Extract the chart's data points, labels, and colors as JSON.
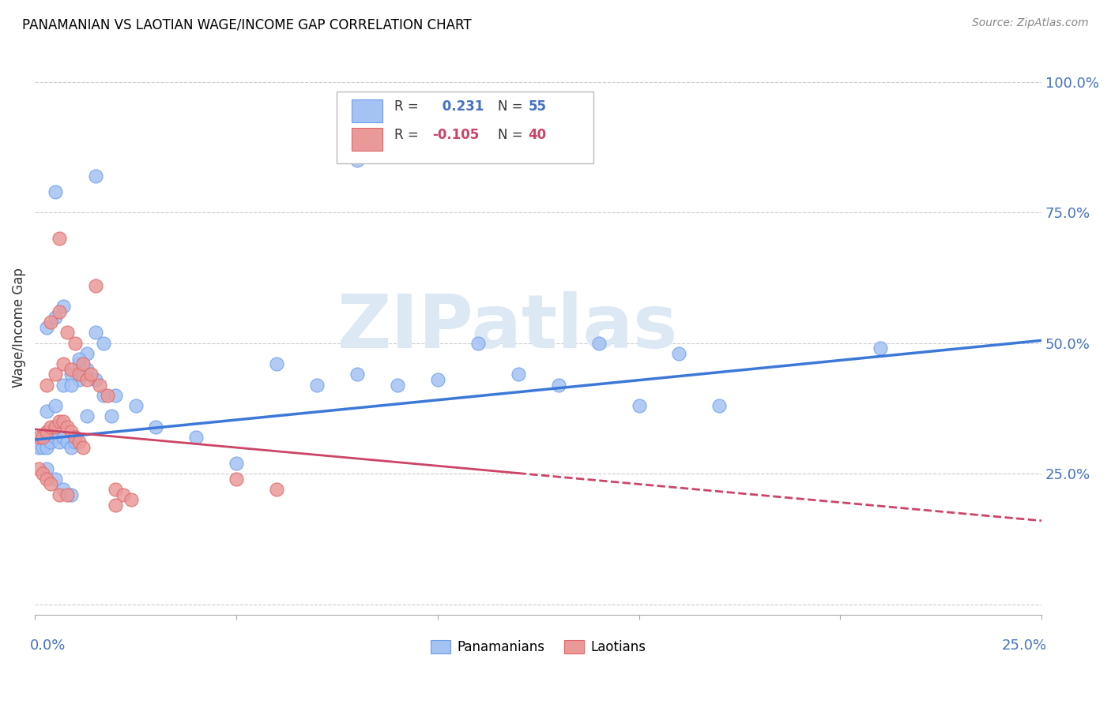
{
  "title": "PANAMANIAN VS LAOTIAN WAGE/INCOME GAP CORRELATION CHART",
  "source": "Source: ZipAtlas.com",
  "ylabel": "Wage/Income Gap",
  "xlim": [
    0.0,
    0.25
  ],
  "ylim": [
    -0.02,
    1.08
  ],
  "blue_R": 0.231,
  "blue_N": 55,
  "pink_R": -0.105,
  "pink_N": 40,
  "blue_color": "#a4c2f4",
  "pink_color": "#ea9999",
  "blue_edge": "#6d9eeb",
  "pink_edge": "#e06666",
  "trend_blue": "#3c78d8",
  "trend_pink": "#cc4466",
  "watermark": "ZIPatlas",
  "yticks": [
    0.0,
    0.25,
    0.5,
    0.75,
    1.0
  ],
  "ytick_labels": [
    "",
    "25.0%",
    "50.0%",
    "75.0%",
    "100.0%"
  ],
  "xtick_positions": [
    0.0,
    0.05,
    0.1,
    0.15,
    0.2,
    0.25
  ],
  "blue_trend_x": [
    0.0,
    0.25
  ],
  "blue_trend_y": [
    0.315,
    0.505
  ],
  "pink_trend_x": [
    0.0,
    0.25
  ],
  "pink_trend_y": [
    0.335,
    0.16
  ],
  "blue_points_x": [
    0.001,
    0.002,
    0.003,
    0.004,
    0.005,
    0.006,
    0.007,
    0.008,
    0.009,
    0.01,
    0.011,
    0.012,
    0.013,
    0.003,
    0.005,
    0.007,
    0.009,
    0.011,
    0.013,
    0.015,
    0.017,
    0.019,
    0.003,
    0.005,
    0.007,
    0.009,
    0.011,
    0.013,
    0.015,
    0.017,
    0.003,
    0.005,
    0.007,
    0.009,
    0.02,
    0.025,
    0.03,
    0.04,
    0.05,
    0.06,
    0.07,
    0.08,
    0.09,
    0.1,
    0.11,
    0.12,
    0.13,
    0.14,
    0.15,
    0.16,
    0.17,
    0.21,
    0.005,
    0.015,
    0.08
  ],
  "blue_points_y": [
    0.3,
    0.3,
    0.3,
    0.31,
    0.32,
    0.31,
    0.32,
    0.31,
    0.3,
    0.31,
    0.43,
    0.44,
    0.36,
    0.37,
    0.38,
    0.42,
    0.44,
    0.46,
    0.48,
    0.52,
    0.5,
    0.36,
    0.53,
    0.55,
    0.57,
    0.42,
    0.47,
    0.45,
    0.43,
    0.4,
    0.26,
    0.24,
    0.22,
    0.21,
    0.4,
    0.38,
    0.34,
    0.32,
    0.27,
    0.46,
    0.42,
    0.44,
    0.42,
    0.43,
    0.5,
    0.44,
    0.42,
    0.5,
    0.38,
    0.48,
    0.38,
    0.49,
    0.79,
    0.82,
    0.85
  ],
  "pink_points_x": [
    0.001,
    0.002,
    0.003,
    0.004,
    0.005,
    0.006,
    0.007,
    0.008,
    0.009,
    0.01,
    0.011,
    0.012,
    0.003,
    0.005,
    0.007,
    0.009,
    0.011,
    0.013,
    0.004,
    0.006,
    0.008,
    0.01,
    0.012,
    0.014,
    0.016,
    0.018,
    0.02,
    0.022,
    0.024,
    0.015,
    0.001,
    0.002,
    0.003,
    0.004,
    0.006,
    0.008,
    0.05,
    0.06,
    0.006,
    0.02
  ],
  "pink_points_y": [
    0.32,
    0.32,
    0.33,
    0.34,
    0.34,
    0.35,
    0.35,
    0.34,
    0.33,
    0.32,
    0.31,
    0.3,
    0.42,
    0.44,
    0.46,
    0.45,
    0.44,
    0.43,
    0.54,
    0.56,
    0.52,
    0.5,
    0.46,
    0.44,
    0.42,
    0.4,
    0.22,
    0.21,
    0.2,
    0.61,
    0.26,
    0.25,
    0.24,
    0.23,
    0.21,
    0.21,
    0.24,
    0.22,
    0.7,
    0.19
  ]
}
